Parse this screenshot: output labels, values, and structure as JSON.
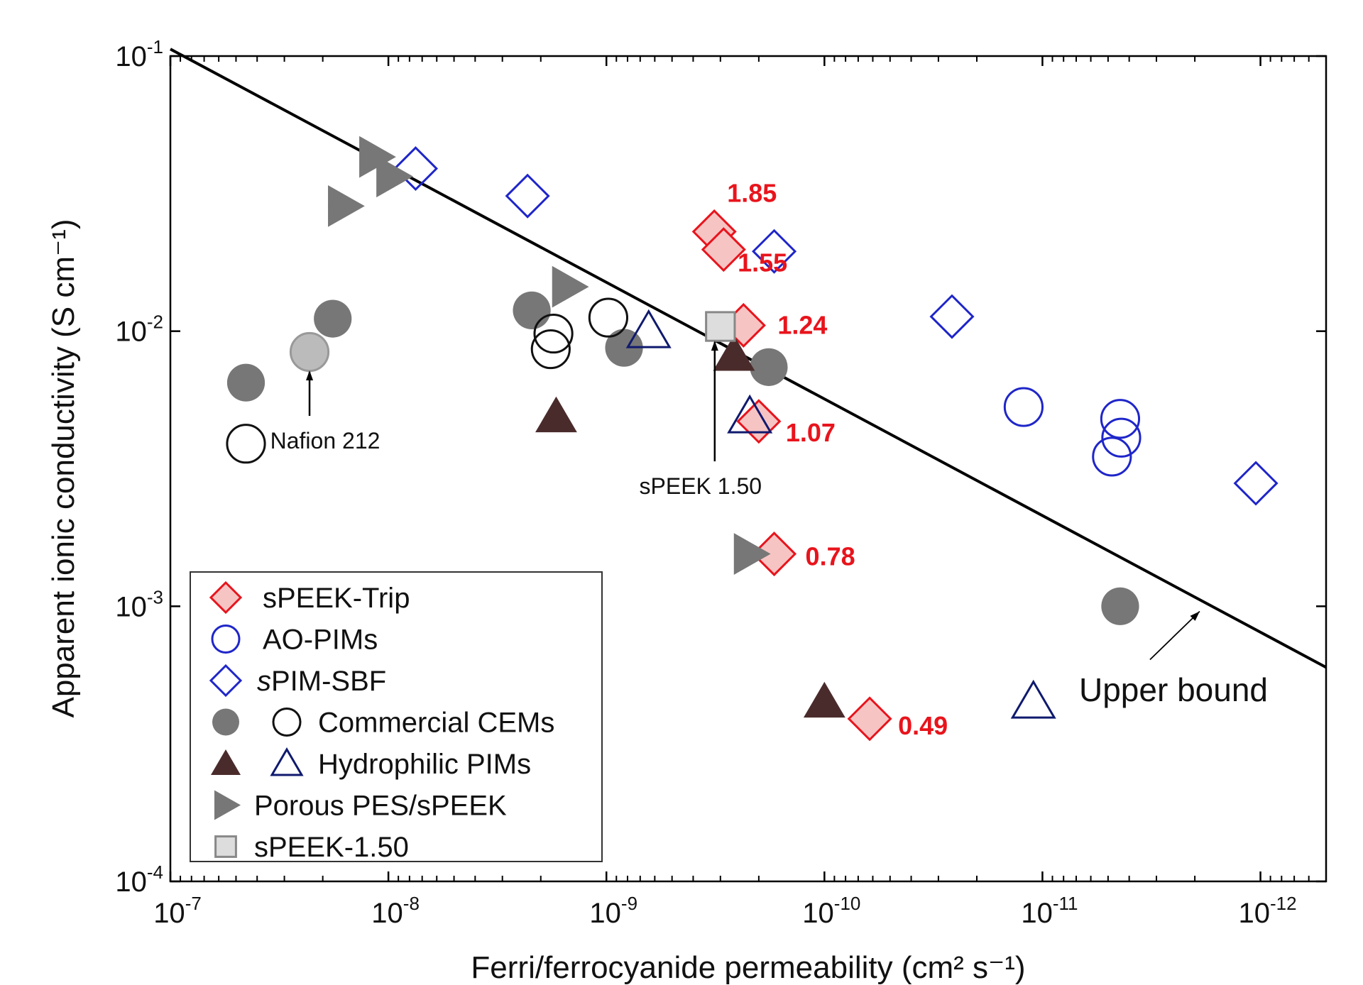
{
  "chart_data": {
    "type": "scatter",
    "title": "",
    "xlabel": "Ferri/ferrocyanide permeability (cm² s⁻¹)",
    "ylabel": "Apparent ionic conductivity (S cm⁻¹)",
    "xscale": "log",
    "yscale": "log",
    "x_reversed": true,
    "xlim": [
      1e-07,
      5e-13
    ],
    "ylim": [
      0.0001,
      0.1
    ],
    "xticks": [
      {
        "value": 1e-07,
        "base": "10",
        "exp": "-7"
      },
      {
        "value": 1e-08,
        "base": "10",
        "exp": "-8"
      },
      {
        "value": 1e-09,
        "base": "10",
        "exp": "-9"
      },
      {
        "value": 1e-10,
        "base": "10",
        "exp": "-10"
      },
      {
        "value": 1e-11,
        "base": "10",
        "exp": "-11"
      },
      {
        "value": 1e-12,
        "base": "10",
        "exp": "-12"
      }
    ],
    "yticks": [
      {
        "value": 0.0001,
        "base": "10",
        "exp": "-4"
      },
      {
        "value": 0.001,
        "base": "10",
        "exp": "-3"
      },
      {
        "value": 0.01,
        "base": "10",
        "exp": "-2"
      },
      {
        "value": 0.1,
        "base": "10",
        "exp": "-1"
      }
    ],
    "grid": false,
    "legend_position": "bottom-left",
    "series": [
      {
        "name": "sPEEK-Trip",
        "marker": "diamond",
        "fill": "#f7c4c4",
        "stroke": "#e8141c",
        "points": [
          [
            3.2e-10,
            0.023
          ],
          [
            2.9e-10,
            0.0198
          ],
          [
            2.35e-10,
            0.0105
          ],
          [
            2e-10,
            0.0047
          ],
          [
            1.7e-10,
            0.00155
          ],
          [
            6.2e-11,
            0.00039
          ]
        ]
      },
      {
        "name": "AO-PIMs",
        "marker": "circle",
        "fill": "none",
        "stroke": "#1f26c9",
        "points": [
          [
            1.22e-11,
            0.0053
          ],
          [
            4.4e-12,
            0.0048
          ],
          [
            4.35e-12,
            0.0041
          ],
          [
            4.8e-12,
            0.0035
          ]
        ]
      },
      {
        "name": "sPIM-SBF",
        "name_italic": "s",
        "name_rest": "PIM-SBF",
        "marker": "diamond",
        "fill": "none",
        "stroke": "#1f26c9",
        "points": [
          [
            7.5e-09,
            0.039
          ],
          [
            2.3e-09,
            0.031
          ],
          [
            1.7e-10,
            0.0195
          ],
          [
            2.6e-11,
            0.0113
          ],
          [
            1.05e-12,
            0.0028
          ]
        ]
      },
      {
        "name": "Commercial CEMs",
        "marker": "circle",
        "fill": "#777777",
        "stroke": "none",
        "points": [
          [
            1.8e-08,
            0.0111
          ],
          [
            4.5e-08,
            0.0065
          ],
          [
            2.2e-09,
            0.0119
          ],
          [
            8.3e-10,
            0.0087
          ],
          [
            1.8e-10,
            0.0074
          ],
          [
            4.4e-12,
            0.001
          ]
        ]
      },
      {
        "name": "Commercial CEMs",
        "marker": "circle",
        "fill": "none",
        "stroke": "#111111",
        "points": [
          [
            1.75e-09,
            0.0098
          ],
          [
            1.8e-09,
            0.0086
          ],
          [
            9.8e-10,
            0.0112
          ],
          [
            4.5e-08,
            0.0039
          ]
        ]
      },
      {
        "name": "Hydrophilic PIMs",
        "marker": "triangle-up",
        "fill": "#4a2b2b",
        "stroke": "none",
        "points": [
          [
            1.7e-09,
            0.0049
          ],
          [
            2.6e-10,
            0.0082
          ],
          [
            1e-10,
            0.00045
          ]
        ]
      },
      {
        "name": "Hydrophilic PIMs",
        "marker": "triangle-up",
        "fill": "none",
        "stroke": "#0f1a6e",
        "points": [
          [
            6.4e-10,
            0.01
          ],
          [
            2.2e-10,
            0.0049
          ],
          [
            1.1e-11,
            0.00045
          ]
        ]
      },
      {
        "name": "Porous PES/sPEEK",
        "marker": "triangle-right",
        "fill": "#777777",
        "stroke": "none",
        "points": [
          [
            1.15e-08,
            0.043
          ],
          [
            9.6e-09,
            0.0365
          ],
          [
            1.6e-08,
            0.0285
          ],
          [
            1.5e-09,
            0.0145
          ],
          [
            2.2e-10,
            0.00155
          ]
        ]
      },
      {
        "name": "sPEEK-1.50",
        "marker": "square",
        "fill": "#dddddd",
        "stroke": "#888888",
        "points": [
          [
            3e-10,
            0.0104
          ]
        ]
      },
      {
        "name": "Nafion 212",
        "marker": "circle",
        "fill": "#bbbbbb",
        "stroke": "#999999",
        "in_legend": false,
        "points": [
          [
            2.3e-08,
            0.0084
          ]
        ]
      }
    ],
    "upper_bound": {
      "x": [
        1e-07,
        5e-13
      ],
      "y": [
        0.106,
        0.0006
      ]
    },
    "value_labels": [
      {
        "text": "1.85",
        "x": 3.2e-10,
        "y": 0.023
      },
      {
        "text": "1.55",
        "x": 2.5e-10,
        "y": 0.0165
      },
      {
        "text": "1.24",
        "x": 2.35e-10,
        "y": 0.0105
      },
      {
        "text": "1.07",
        "x": 2e-10,
        "y": 0.0047
      },
      {
        "text": "0.78",
        "x": 1.7e-10,
        "y": 0.00155
      },
      {
        "text": "0.49",
        "x": 6.2e-11,
        "y": 0.00039
      }
    ],
    "annotations": [
      {
        "text": "Nafion 212",
        "x": 2.3e-08,
        "y": 0.0084
      },
      {
        "text": "sPEEK 1.50",
        "x": 3e-10,
        "y": 0.0104
      },
      {
        "text": "Upper bound",
        "x": 1.9e-12,
        "y": 0.00097
      }
    ]
  }
}
